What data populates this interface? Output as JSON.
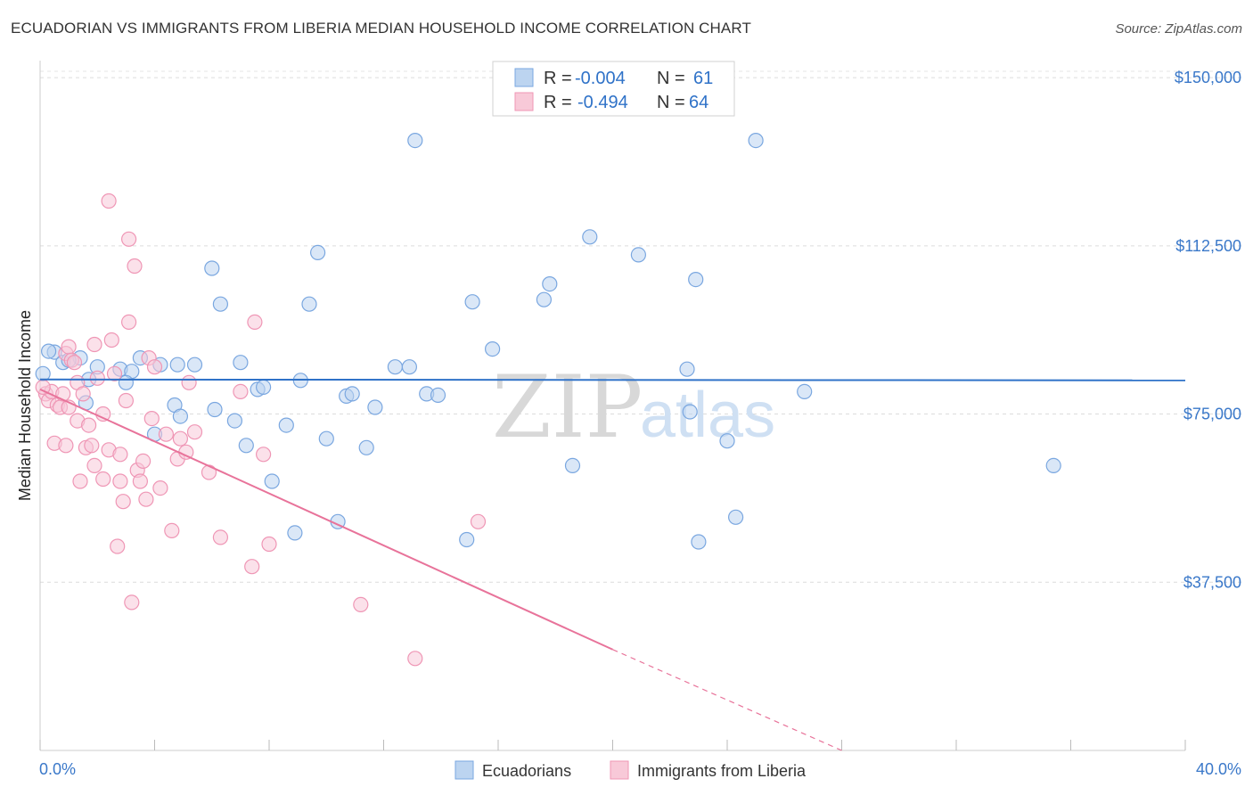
{
  "title": "ECUADORIAN VS IMMIGRANTS FROM LIBERIA MEDIAN HOUSEHOLD INCOME CORRELATION CHART",
  "source": "Source: ZipAtlas.com",
  "watermark": {
    "zip": "ZIP",
    "atlas": "atlas"
  },
  "colors": {
    "blue_fill": "#bcd4f0",
    "blue_stroke": "#7aa7e0",
    "blue_line": "#2f72c8",
    "pink_fill": "#f8c9d8",
    "pink_stroke": "#ef96b5",
    "pink_line": "#e8739a",
    "axis_text": "#3a78c9"
  },
  "legend": {
    "rows": [
      {
        "r_label": "R = ",
        "r_value": "-0.004",
        "n_label": "N = ",
        "n_value": "61"
      },
      {
        "r_label": "R = ",
        "r_value": "-0.494",
        "n_label": "N = ",
        "n_value": "64"
      }
    ]
  },
  "chart_data": {
    "type": "scatter",
    "ylabel": "Median Household Income",
    "xlim": [
      0,
      40
    ],
    "ylim": [
      0,
      153000
    ],
    "x_ticks": [
      0,
      4,
      8,
      12,
      16,
      20,
      24,
      28,
      32,
      36,
      40
    ],
    "x_tick_labels": {
      "0": "0.0%",
      "40": "40.0%"
    },
    "y_ticks": [
      37500,
      75000,
      112500,
      150000
    ],
    "y_tick_labels": [
      "$37,500",
      "$75,000",
      "$112,500",
      "$150,000"
    ],
    "grid": true,
    "legend_position": "top-center",
    "series": [
      {
        "name": "Ecuadorians",
        "color": "#7aa7e0",
        "trend": {
          "x": [
            0,
            40
          ],
          "y": [
            82700,
            82500
          ],
          "style": "solid"
        },
        "points": [
          [
            0.1,
            84000
          ],
          [
            0.5,
            88800
          ],
          [
            0.8,
            86500
          ],
          [
            1.4,
            87500
          ],
          [
            1.6,
            77500
          ],
          [
            1.7,
            82700
          ],
          [
            2.0,
            85500
          ],
          [
            2.8,
            85000
          ],
          [
            3.2,
            84500
          ],
          [
            3.5,
            87500
          ],
          [
            3.0,
            82000
          ],
          [
            4.2,
            86000
          ],
          [
            4.8,
            86000
          ],
          [
            5.4,
            86000
          ],
          [
            4.7,
            77000
          ],
          [
            4.9,
            74500
          ],
          [
            4.0,
            70500
          ],
          [
            6.0,
            107500
          ],
          [
            6.3,
            99500
          ],
          [
            6.1,
            76000
          ],
          [
            6.8,
            73500
          ],
          [
            7.0,
            86500
          ],
          [
            7.2,
            68000
          ],
          [
            7.6,
            80500
          ],
          [
            7.8,
            81000
          ],
          [
            8.1,
            60000
          ],
          [
            8.6,
            72500
          ],
          [
            8.9,
            48500
          ],
          [
            9.1,
            82500
          ],
          [
            9.4,
            99500
          ],
          [
            9.7,
            111000
          ],
          [
            10.0,
            69500
          ],
          [
            10.4,
            51000
          ],
          [
            10.7,
            79000
          ],
          [
            10.9,
            79500
          ],
          [
            11.4,
            67500
          ],
          [
            11.7,
            76500
          ],
          [
            12.4,
            85500
          ],
          [
            12.9,
            85500
          ],
          [
            13.1,
            136000
          ],
          [
            13.5,
            79500
          ],
          [
            13.9,
            79200
          ],
          [
            14.9,
            47000
          ],
          [
            15.1,
            100000
          ],
          [
            15.8,
            89500
          ],
          [
            17.6,
            100500
          ],
          [
            17.8,
            104000
          ],
          [
            18.6,
            63500
          ],
          [
            19.2,
            114500
          ],
          [
            20.9,
            110500
          ],
          [
            22.6,
            85000
          ],
          [
            22.7,
            75500
          ],
          [
            22.9,
            105000
          ],
          [
            23.0,
            46500
          ],
          [
            24.0,
            69000
          ],
          [
            24.3,
            52000
          ],
          [
            25.0,
            136000
          ],
          [
            26.7,
            80000
          ],
          [
            35.4,
            63500
          ],
          [
            0.3,
            89000
          ],
          [
            1.0,
            87000
          ]
        ]
      },
      {
        "name": "Immigrants from Liberia",
        "color": "#ef96b5",
        "trend": {
          "x": [
            0,
            20
          ],
          "y": [
            80500,
            22500
          ],
          "style": "solid",
          "dashed_to": {
            "x": 28,
            "y": -500
          }
        },
        "points": [
          [
            0.2,
            79500
          ],
          [
            0.3,
            78000
          ],
          [
            0.4,
            80000
          ],
          [
            0.5,
            68500
          ],
          [
            0.6,
            77000
          ],
          [
            0.7,
            76500
          ],
          [
            0.8,
            79500
          ],
          [
            0.9,
            88500
          ],
          [
            0.9,
            68000
          ],
          [
            1.0,
            90000
          ],
          [
            1.1,
            87000
          ],
          [
            1.2,
            86500
          ],
          [
            1.3,
            82000
          ],
          [
            1.3,
            73500
          ],
          [
            1.4,
            60000
          ],
          [
            1.5,
            79500
          ],
          [
            1.6,
            67500
          ],
          [
            1.7,
            72500
          ],
          [
            1.8,
            68000
          ],
          [
            1.9,
            90500
          ],
          [
            1.9,
            63500
          ],
          [
            2.0,
            83000
          ],
          [
            2.2,
            75000
          ],
          [
            2.2,
            60500
          ],
          [
            2.4,
            122500
          ],
          [
            2.4,
            67000
          ],
          [
            2.5,
            91500
          ],
          [
            2.6,
            84000
          ],
          [
            2.7,
            45500
          ],
          [
            2.8,
            60000
          ],
          [
            2.8,
            66000
          ],
          [
            2.9,
            55500
          ],
          [
            3.0,
            78000
          ],
          [
            3.1,
            114000
          ],
          [
            3.1,
            95500
          ],
          [
            3.2,
            33000
          ],
          [
            3.3,
            108000
          ],
          [
            3.4,
            62500
          ],
          [
            3.5,
            60000
          ],
          [
            3.6,
            64500
          ],
          [
            3.7,
            56000
          ],
          [
            3.8,
            87500
          ],
          [
            3.9,
            74000
          ],
          [
            4.0,
            85500
          ],
          [
            4.2,
            58500
          ],
          [
            4.4,
            70500
          ],
          [
            4.6,
            49000
          ],
          [
            4.8,
            65000
          ],
          [
            4.9,
            69500
          ],
          [
            5.1,
            66500
          ],
          [
            5.2,
            82000
          ],
          [
            5.4,
            71000
          ],
          [
            5.9,
            62000
          ],
          [
            6.3,
            47500
          ],
          [
            7.0,
            80000
          ],
          [
            7.4,
            41000
          ],
          [
            7.5,
            95500
          ],
          [
            7.8,
            66000
          ],
          [
            8.0,
            46000
          ],
          [
            11.2,
            32500
          ],
          [
            13.1,
            20500
          ],
          [
            15.3,
            51000
          ],
          [
            0.1,
            81000
          ],
          [
            1.0,
            76500
          ]
        ]
      }
    ]
  }
}
